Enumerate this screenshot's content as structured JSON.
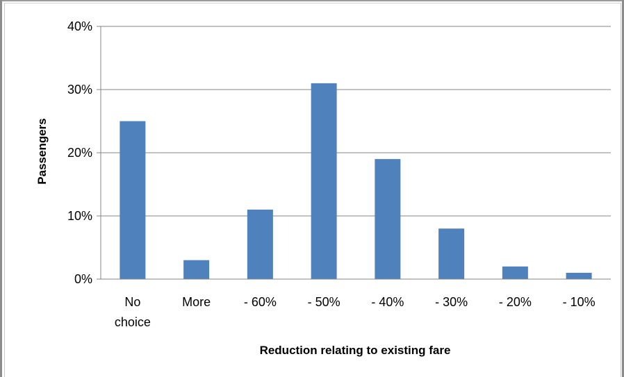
{
  "chart_data": {
    "type": "bar",
    "title": "",
    "xlabel": "Reduction relating to existing fare",
    "ylabel": "Passengers",
    "categories": [
      [
        "No",
        "choice"
      ],
      [
        "More"
      ],
      [
        "- 60%"
      ],
      [
        "- 50%"
      ],
      [
        "- 40%"
      ],
      [
        "- 30%"
      ],
      [
        "- 20%"
      ],
      [
        "- 10%"
      ]
    ],
    "values": [
      25,
      3,
      11,
      31,
      19,
      8,
      2,
      1
    ],
    "ylim": [
      0,
      40
    ],
    "yticks": [
      0,
      10,
      20,
      30,
      40
    ],
    "ytick_labels": [
      "0%",
      "10%",
      "20%",
      "30%",
      "40%"
    ],
    "grid": true,
    "legend": "none",
    "bar_color": "#4f81bd",
    "grid_color": "#868686"
  }
}
